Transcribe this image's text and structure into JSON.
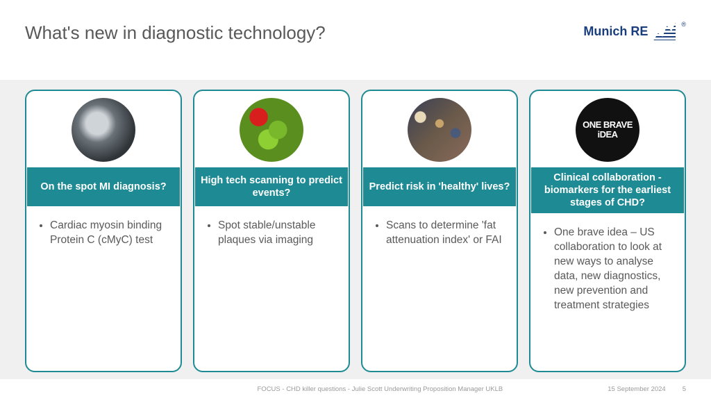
{
  "colors": {
    "title_text": "#595959",
    "body_text": "#595959",
    "card_border": "#1e8a94",
    "heading_bg": "#1e8a94",
    "heading_text": "#ffffff",
    "body_bg": "#f0f0f0",
    "brand": "#1a3d7c"
  },
  "header": {
    "title": "What's new in diagnostic technology?",
    "brand_name": "Munich RE"
  },
  "cards": [
    {
      "image_kind": "xray",
      "heading": "On the spot MI diagnosis?",
      "bullet": "Cardiac myosin binding Protein C (cMyC) test"
    },
    {
      "image_kind": "apples",
      "heading": "High tech scanning to predict events?",
      "bullet": "Spot stable/unstable plaques via imaging"
    },
    {
      "image_kind": "crowd",
      "heading": "Predict risk in 'healthy' lives?",
      "bullet": "Scans to determine 'fat attenuation index' or FAI"
    },
    {
      "image_kind": "brave",
      "image_text": "ONE BRAVE iDEA",
      "heading": "Clinical collaboration - biomarkers for the earliest stages of CHD?",
      "bullet": "One brave idea – US collaboration to look at new ways to analyse data, new diagnostics, new prevention and treatment strategies"
    }
  ],
  "footer": {
    "caption": "FOCUS - CHD killer questions - Julie Scott Underwriting Proposition Manager UKLB",
    "date": "15 September 2024",
    "page": "5"
  }
}
